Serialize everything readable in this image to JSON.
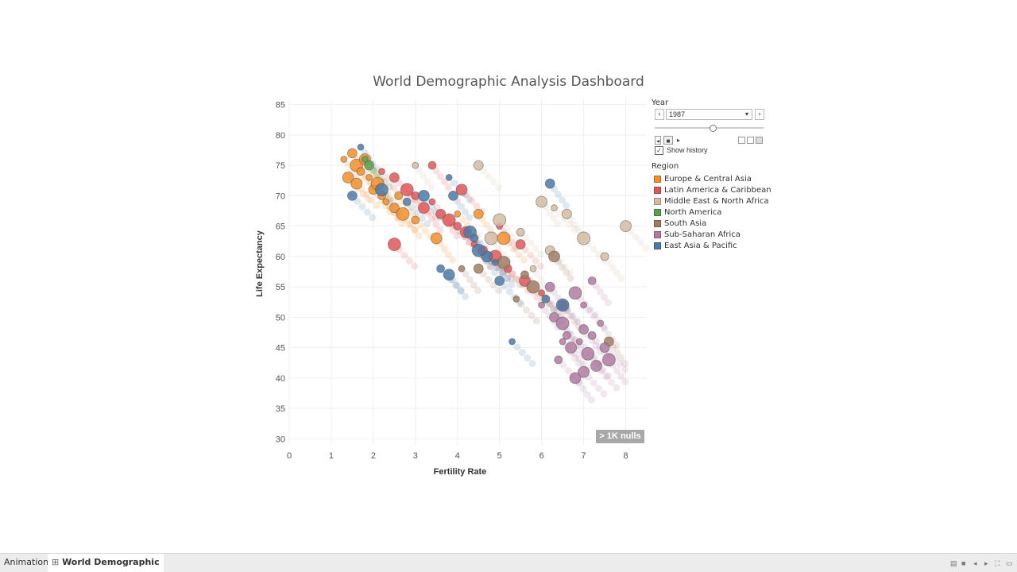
{
  "dashboard": {
    "title": "World Demographic Analysis Dashboard",
    "current_year": "1987",
    "nulls_badge": "> 1K nulls"
  },
  "controls": {
    "year_label": "Year",
    "year_value": "1987",
    "slider_fraction": 0.5,
    "show_history_label": "Show history",
    "show_history_checked": true,
    "prev_icon": "chevron-left-icon",
    "next_icon": "chevron-right-icon"
  },
  "legend": {
    "title": "Region",
    "items": [
      {
        "label": "Europe & Central Asia",
        "color": "#f28e2b"
      },
      {
        "label": "Latin America & Caribbean",
        "color": "#e15759"
      },
      {
        "label": "Middle East & North Africa",
        "color": "#d4bba3"
      },
      {
        "label": "North America",
        "color": "#59a14f"
      },
      {
        "label": "South Asia",
        "color": "#a07c64"
      },
      {
        "label": "Sub-Saharan Africa",
        "color": "#b07aa1"
      },
      {
        "label": "East Asia & Pacific",
        "color": "#4e79a7"
      }
    ]
  },
  "tabs": [
    {
      "label": "Animation",
      "active": false
    },
    {
      "label": "World Demographic",
      "active": true
    }
  ],
  "chart_data": {
    "type": "scatter",
    "title": "World Demographic Analysis Dashboard",
    "xlabel": "Fertility Rate",
    "ylabel": "Life Expectancy",
    "xlim": [
      0,
      8.5
    ],
    "ylim": [
      29,
      86
    ],
    "xticks": [
      0,
      1,
      2,
      3,
      4,
      5,
      6,
      7,
      8
    ],
    "yticks": [
      30,
      35,
      40,
      45,
      50,
      55,
      60,
      65,
      70,
      75,
      80,
      85
    ],
    "grid": true,
    "legend_position": "right",
    "series": [
      {
        "name": "Europe & Central Asia",
        "color": "#f28e2b",
        "points": [
          [
            1.3,
            76
          ],
          [
            1.5,
            77
          ],
          [
            1.6,
            75
          ],
          [
            1.7,
            74
          ],
          [
            1.8,
            76
          ],
          [
            1.9,
            73
          ],
          [
            2.0,
            71
          ],
          [
            2.1,
            72
          ],
          [
            2.2,
            70
          ],
          [
            1.4,
            73
          ],
          [
            2.3,
            69
          ],
          [
            2.5,
            68
          ],
          [
            2.7,
            67
          ],
          [
            3.0,
            66
          ],
          [
            3.5,
            63
          ],
          [
            4.0,
            67
          ],
          [
            4.5,
            67
          ],
          [
            5.1,
            63
          ],
          [
            2.6,
            70
          ],
          [
            1.6,
            72
          ]
        ]
      },
      {
        "name": "Latin America & Caribbean",
        "color": "#e15759",
        "points": [
          [
            2.2,
            74
          ],
          [
            2.5,
            73
          ],
          [
            2.8,
            71
          ],
          [
            3.0,
            70
          ],
          [
            3.2,
            68
          ],
          [
            3.4,
            69
          ],
          [
            3.6,
            67
          ],
          [
            3.8,
            66
          ],
          [
            4.0,
            65
          ],
          [
            4.2,
            64
          ],
          [
            4.4,
            62
          ],
          [
            4.6,
            61
          ],
          [
            4.9,
            60
          ],
          [
            5.2,
            58
          ],
          [
            5.6,
            56
          ],
          [
            6.0,
            54
          ],
          [
            6.5,
            52
          ],
          [
            2.5,
            62
          ],
          [
            3.4,
            75
          ],
          [
            4.1,
            71
          ],
          [
            5.0,
            65
          ],
          [
            5.5,
            62
          ]
        ]
      },
      {
        "name": "Middle East & North Africa",
        "color": "#d4bba3",
        "points": [
          [
            3.0,
            75
          ],
          [
            4.5,
            75
          ],
          [
            5.0,
            66
          ],
          [
            5.5,
            64
          ],
          [
            6.0,
            69
          ],
          [
            6.3,
            68
          ],
          [
            6.6,
            67
          ],
          [
            7.0,
            63
          ],
          [
            7.5,
            60
          ],
          [
            8.0,
            65
          ],
          [
            5.8,
            58
          ],
          [
            6.2,
            61
          ],
          [
            4.8,
            63
          ]
        ]
      },
      {
        "name": "North America",
        "color": "#59a14f",
        "points": [
          [
            1.8,
            76
          ],
          [
            1.9,
            75
          ]
        ]
      },
      {
        "name": "South Asia",
        "color": "#a07c64",
        "points": [
          [
            4.1,
            58
          ],
          [
            4.5,
            58
          ],
          [
            5.1,
            59
          ],
          [
            5.6,
            57
          ],
          [
            6.3,
            60
          ],
          [
            5.4,
            53
          ],
          [
            7.6,
            46
          ],
          [
            5.8,
            55
          ]
        ]
      },
      {
        "name": "Sub-Saharan Africa",
        "color": "#b07aa1",
        "points": [
          [
            6.0,
            52
          ],
          [
            6.3,
            50
          ],
          [
            6.5,
            49
          ],
          [
            6.6,
            47
          ],
          [
            6.7,
            45
          ],
          [
            6.9,
            46
          ],
          [
            7.0,
            48
          ],
          [
            7.1,
            44
          ],
          [
            7.2,
            47
          ],
          [
            7.3,
            42
          ],
          [
            7.4,
            49
          ],
          [
            7.5,
            45
          ],
          [
            7.6,
            43
          ],
          [
            6.4,
            43
          ],
          [
            6.8,
            40
          ],
          [
            7.0,
            52
          ],
          [
            6.2,
            55
          ],
          [
            6.8,
            54
          ],
          [
            7.2,
            56
          ],
          [
            7.0,
            41
          ],
          [
            6.5,
            46
          ]
        ]
      },
      {
        "name": "East Asia & Pacific",
        "color": "#4e79a7",
        "points": [
          [
            1.7,
            78
          ],
          [
            1.5,
            70
          ],
          [
            2.2,
            71
          ],
          [
            2.8,
            69
          ],
          [
            3.2,
            70
          ],
          [
            3.8,
            73
          ],
          [
            3.9,
            70
          ],
          [
            4.3,
            64
          ],
          [
            4.4,
            63
          ],
          [
            4.7,
            60
          ],
          [
            4.9,
            59
          ],
          [
            5.0,
            56
          ],
          [
            4.5,
            61
          ],
          [
            3.6,
            58
          ],
          [
            3.8,
            57
          ],
          [
            5.3,
            46
          ],
          [
            6.2,
            72
          ],
          [
            6.5,
            52
          ],
          [
            6.1,
            53
          ]
        ]
      }
    ]
  }
}
